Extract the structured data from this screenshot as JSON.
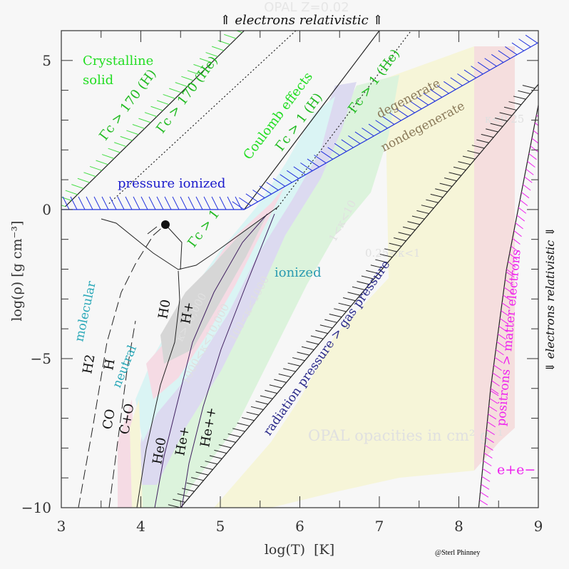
{
  "chart_data": {
    "type": "diagram",
    "title": "OPAL Z=0.02",
    "xlabel": "log(T)  [K]",
    "ylabel": "log(ρ)  [g cm⁻³]",
    "xlim": [
      3,
      9
    ],
    "ylim": [
      -10,
      6
    ],
    "xticks": [
      "3",
      "4",
      "5",
      "6",
      "7",
      "8",
      "9"
    ],
    "yticks": [
      {
        "value": 5,
        "label": "5"
      },
      {
        "value": 0,
        "label": "0"
      },
      {
        "value": -5,
        "label": "−5"
      },
      {
        "value": -10,
        "label": "−10"
      }
    ],
    "top_annotation": "⇑ electrons relativistic ⇑",
    "right_annotation": "⇓ electrons relativistic ⇓",
    "opacity_bands": [
      {
        "label": "κ<0.25",
        "color": "#f5dede"
      },
      {
        "label": "0.25<κ<1",
        "color": "#f6f5d8"
      },
      {
        "label": "1<κ<10",
        "color": "#dcf3dc"
      },
      {
        "label": "10<κ<100",
        "color": "#dcdaf0"
      },
      {
        "label": "100<κ<1000",
        "color": "#daf4f4"
      },
      {
        "label": "1000<κ<10,000",
        "color": "#f5dbe4"
      },
      {
        "label": "κ>10,000",
        "color": "#d6d6d6"
      }
    ],
    "opacity_caption": "OPAL opacities in cm² g⁻¹",
    "region_labels": [
      {
        "text": "Crystalline",
        "color": "#22dd22"
      },
      {
        "text": "solid",
        "color": "#22dd22"
      },
      {
        "text": "Γc > 170 (H)",
        "color": "#22bb22"
      },
      {
        "text": "Γc > 170 (He)",
        "color": "#22bb22"
      },
      {
        "text": "Coulomb effects",
        "color": "#22dd22"
      },
      {
        "text": "Γc > 1 (H)",
        "color": "#22bb22"
      },
      {
        "text": "Γc > 1 (He)",
        "color": "#22bb22"
      },
      {
        "text": "Γc > 1",
        "color": "#22bb22"
      },
      {
        "text": "pressure ionized",
        "color": "#1a1acc"
      },
      {
        "text": "degenerate",
        "color": "#8a7a5a"
      },
      {
        "text": "nondegenerate",
        "color": "#8a7a5a"
      },
      {
        "text": "ionized",
        "color": "#2a9ab0"
      },
      {
        "text": "molecular",
        "color": "#2aa8b8"
      },
      {
        "text": "neutral",
        "color": "#2aa8b8"
      },
      {
        "text": "H2",
        "color": "#111111"
      },
      {
        "text": "H",
        "color": "#111111"
      },
      {
        "text": "CO",
        "color": "#111111"
      },
      {
        "text": "C+O",
        "color": "#111111"
      },
      {
        "text": "H0",
        "color": "#111111"
      },
      {
        "text": "H+",
        "color": "#111111"
      },
      {
        "text": "He0",
        "color": "#111111"
      },
      {
        "text": "He+",
        "color": "#111111"
      },
      {
        "text": "He++",
        "color": "#111111"
      },
      {
        "text": "radiation pressure > gas pressure",
        "color": "#2a2a8a"
      },
      {
        "text": "positrons > matter electrons",
        "color": "#ee22ee"
      },
      {
        "text": "e+e−",
        "color": "#ee22ee"
      }
    ],
    "boundary_lines": [
      {
        "name": "gamma-170-H",
        "points": [
          [
            3.05,
            0.1
          ],
          [
            5.3,
            6
          ]
        ],
        "style": "solid"
      },
      {
        "name": "gamma-170-He",
        "points": [
          [
            3.6,
            0.2
          ],
          [
            5.95,
            6
          ]
        ],
        "style": "dotted"
      },
      {
        "name": "gamma-1-H",
        "points": [
          [
            5.3,
            0
          ],
          [
            7.0,
            6
          ]
        ],
        "style": "solid"
      },
      {
        "name": "gamma-1-He",
        "points": [
          [
            5.7,
            0
          ],
          [
            7.4,
            6
          ]
        ],
        "style": "dotted"
      },
      {
        "name": "pressure-ionized",
        "points": [
          [
            3,
            0
          ],
          [
            5.3,
            0
          ],
          [
            9,
            5.6
          ]
        ],
        "style": "solid-blue-hatched"
      },
      {
        "name": "radiation-pressure",
        "points": [
          [
            4.5,
            -10
          ],
          [
            9,
            4.2
          ]
        ],
        "style": "solid-hatched"
      },
      {
        "name": "pair-production",
        "points": [
          [
            8.25,
            -10
          ],
          [
            8.4,
            -6
          ],
          [
            8.6,
            -2
          ],
          [
            9,
            3.5
          ]
        ],
        "style": "solid-magenta-hatched"
      }
    ],
    "critical_point": {
      "logT": 4.3,
      "logRho": -0.5
    },
    "grid": false
  },
  "credit": "@Sterl Phinney"
}
